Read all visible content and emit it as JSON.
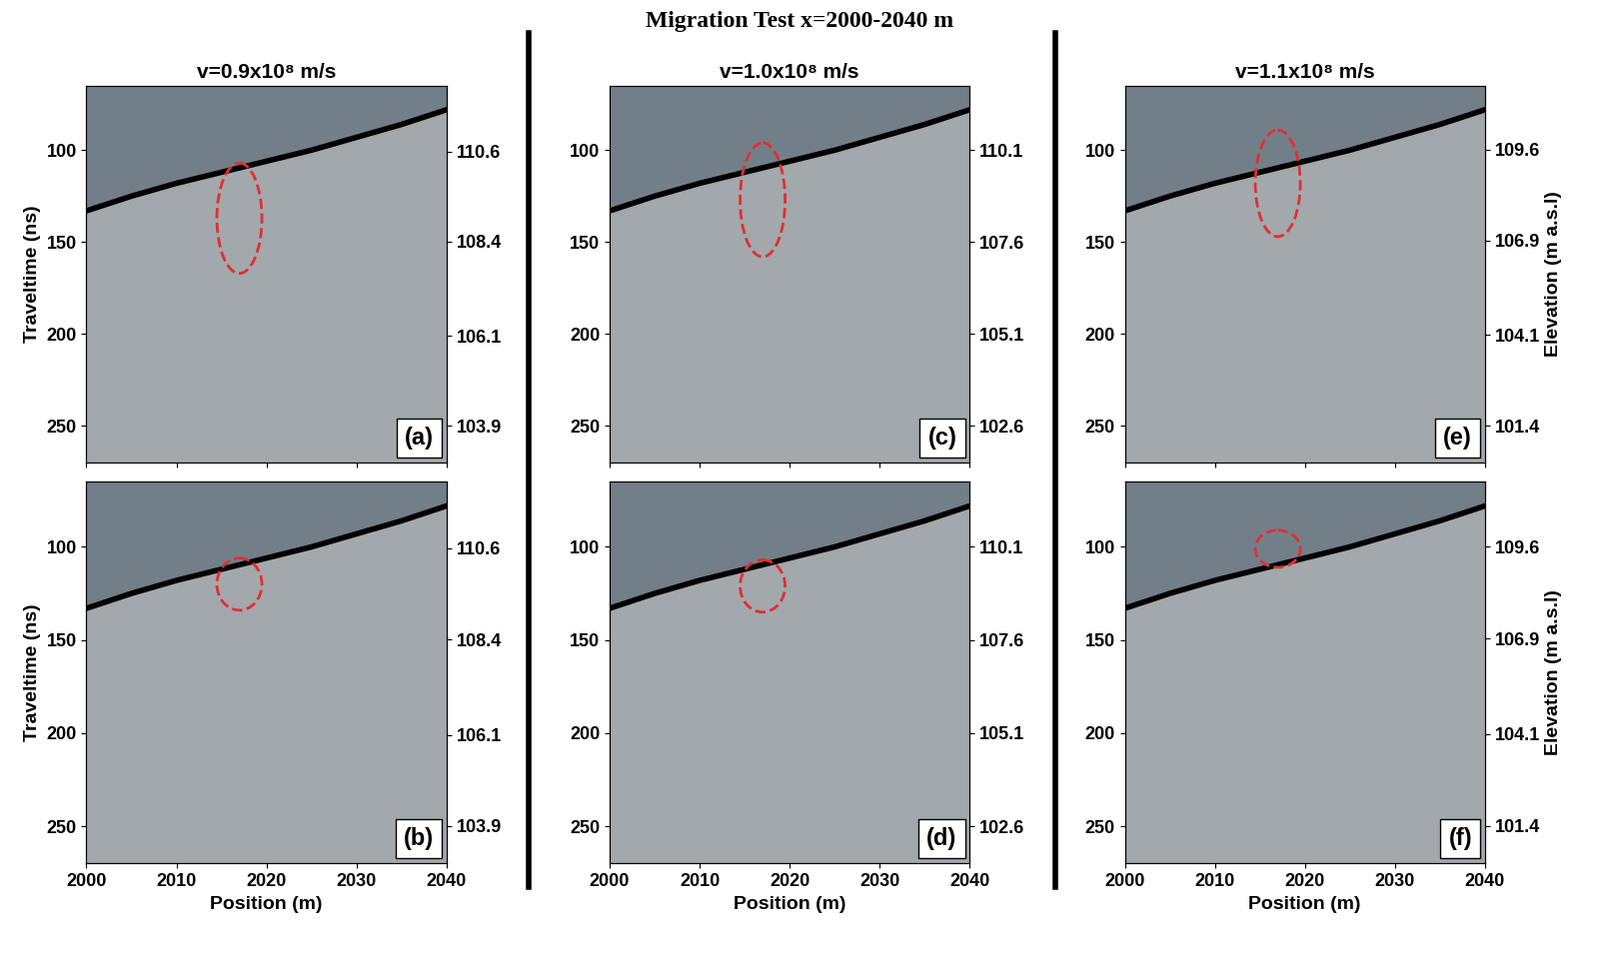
{
  "title": "Migration Test x=2000-2040 m",
  "chart_data": [
    {
      "type": "image",
      "title": "v=0.9x10⁸ m/s",
      "panel_label": "(a)",
      "ylabel": "Traveltime (ns)",
      "tick_labels": "y",
      "xlim": [
        2000,
        2040
      ],
      "xticks": [
        2000,
        2010,
        2020,
        2030,
        2040
      ],
      "ylim": [
        270,
        65
      ],
      "yticks": [
        100,
        150,
        200,
        250
      ],
      "y2lim": [
        103.0,
        112.2
      ],
      "y2ticks": [
        110.6,
        108.4,
        106.1,
        103.9
      ],
      "surface": {
        "x": [
          2000,
          2005,
          2010,
          2015,
          2020,
          2025,
          2030,
          2035,
          2040
        ],
        "traveltime": [
          133,
          125,
          118,
          112,
          106,
          100,
          93,
          86,
          78
        ]
      },
      "ellipse": {
        "x": 2017,
        "y": 137,
        "width": 5,
        "height": 60,
        "color": "#e03030",
        "line_style": "dashed"
      }
    },
    {
      "type": "image",
      "panel_label": "(b)",
      "xlabel": "Position (m)",
      "ylabel": "Traveltime (ns)",
      "xlim": [
        2000,
        2040
      ],
      "xticks": [
        2000,
        2010,
        2020,
        2030,
        2040
      ],
      "ylim": [
        270,
        65
      ],
      "yticks": [
        100,
        150,
        200,
        250
      ],
      "y2lim": [
        103.0,
        112.2
      ],
      "y2ticks": [
        110.6,
        108.4,
        106.1,
        103.9
      ],
      "surface": {
        "x": [
          2000,
          2005,
          2010,
          2015,
          2020,
          2025,
          2030,
          2035,
          2040
        ],
        "traveltime": [
          133,
          125,
          118,
          112,
          106,
          100,
          93,
          86,
          78
        ]
      },
      "ellipse": {
        "x": 2017,
        "y": 120,
        "width": 5,
        "height": 28,
        "color": "#e03030",
        "line_style": "dashed"
      }
    },
    {
      "type": "image",
      "title": "v=1.0x10⁸ m/s",
      "panel_label": "(c)",
      "tick_labels": "y",
      "xlim": [
        2000,
        2040
      ],
      "xticks": [
        2000,
        2010,
        2020,
        2030,
        2040
      ],
      "ylim": [
        270,
        65
      ],
      "yticks": [
        100,
        150,
        200,
        250
      ],
      "y2lim": [
        101.6,
        111.85
      ],
      "y2ticks": [
        110.1,
        107.6,
        105.1,
        102.6
      ],
      "surface": {
        "x": [
          2000,
          2005,
          2010,
          2015,
          2020,
          2025,
          2030,
          2035,
          2040
        ],
        "traveltime": [
          133,
          125,
          118,
          112,
          106,
          100,
          93,
          86,
          78
        ]
      },
      "ellipse": {
        "x": 2017,
        "y": 127,
        "width": 5,
        "height": 62,
        "color": "#e03030",
        "line_style": "dashed"
      }
    },
    {
      "type": "image",
      "panel_label": "(d)",
      "xlabel": "Position (m)",
      "xlim": [
        2000,
        2040
      ],
      "xticks": [
        2000,
        2010,
        2020,
        2030,
        2040
      ],
      "ylim": [
        270,
        65
      ],
      "yticks": [
        100,
        150,
        200,
        250
      ],
      "y2lim": [
        101.6,
        111.85
      ],
      "y2ticks": [
        110.1,
        107.6,
        105.1,
        102.6
      ],
      "surface": {
        "x": [
          2000,
          2005,
          2010,
          2015,
          2020,
          2025,
          2030,
          2035,
          2040
        ],
        "traveltime": [
          133,
          125,
          118,
          112,
          106,
          100,
          93,
          86,
          78
        ]
      },
      "ellipse": {
        "x": 2017,
        "y": 121,
        "width": 5,
        "height": 28,
        "color": "#e03030",
        "line_style": "dashed"
      }
    },
    {
      "type": "image",
      "title": "v=1.1x10⁸ m/s",
      "panel_label": "(e)",
      "y2label": "Elevation (m a.s.l)",
      "tick_labels": "y",
      "xlim": [
        2000,
        2040
      ],
      "xticks": [
        2000,
        2010,
        2020,
        2030,
        2040
      ],
      "ylim": [
        270,
        65
      ],
      "yticks": [
        100,
        150,
        200,
        250
      ],
      "y2lim": [
        100.3,
        111.5
      ],
      "y2ticks": [
        109.6,
        106.9,
        104.1,
        101.4
      ],
      "surface": {
        "x": [
          2000,
          2005,
          2010,
          2015,
          2020,
          2025,
          2030,
          2035,
          2040
        ],
        "traveltime": [
          133,
          125,
          118,
          112,
          106,
          100,
          93,
          86,
          78
        ]
      },
      "ellipse": {
        "x": 2017,
        "y": 118,
        "width": 5,
        "height": 58,
        "color": "#e03030",
        "line_style": "dashed"
      }
    },
    {
      "type": "image",
      "panel_label": "(f)",
      "xlabel": "Position (m)",
      "y2label": "Elevation (m a.s.l)",
      "xlim": [
        2000,
        2040
      ],
      "xticks": [
        2000,
        2010,
        2020,
        2030,
        2040
      ],
      "ylim": [
        270,
        65
      ],
      "yticks": [
        100,
        150,
        200,
        250
      ],
      "y2lim": [
        100.3,
        111.5
      ],
      "y2ticks": [
        109.6,
        106.9,
        104.1,
        101.4
      ],
      "surface": {
        "x": [
          2000,
          2005,
          2010,
          2015,
          2020,
          2025,
          2030,
          2035,
          2040
        ],
        "traveltime": [
          133,
          125,
          118,
          112,
          106,
          100,
          93,
          86,
          78
        ]
      },
      "ellipse": {
        "x": 2017,
        "y": 101,
        "width": 5,
        "height": 20,
        "color": "#e03030",
        "line_style": "dashed"
      }
    }
  ]
}
